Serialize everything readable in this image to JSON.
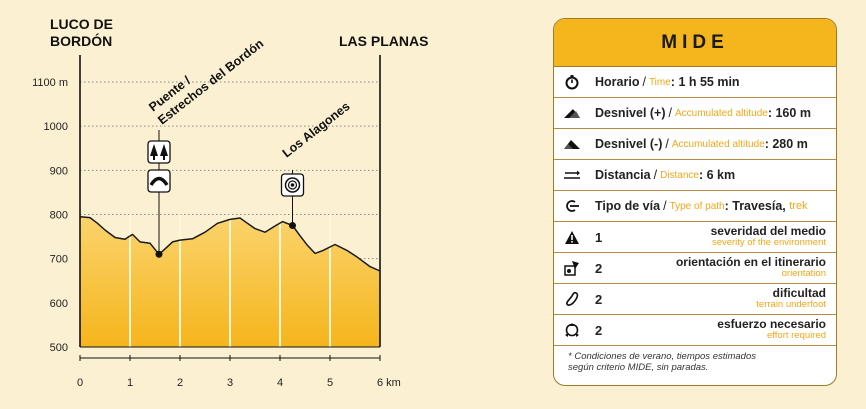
{
  "profile": {
    "start_label_line1": "LUCO DE",
    "start_label_line2": "BORDÓN",
    "end_label": "LAS PLANAS"
  },
  "chart_data": {
    "type": "area",
    "xlabel": "",
    "ylabel": "",
    "x_unit": "km",
    "y_unit": "m",
    "xlim": [
      0,
      6
    ],
    "ylim": [
      500,
      1100
    ],
    "x_ticks": [
      0,
      1,
      2,
      3,
      4,
      5,
      6
    ],
    "x_tick_labels": [
      "0",
      "1",
      "2",
      "3",
      "4",
      "5",
      "6 km"
    ],
    "y_ticks": [
      500,
      600,
      700,
      800,
      900,
      1000,
      1100
    ],
    "y_tick_labels": [
      "500",
      "600",
      "700",
      "800",
      "900",
      "1000",
      "1100 m"
    ],
    "grid": true,
    "fill_color": "#f5b51c",
    "series": [
      {
        "x": [
          0,
          0.2,
          0.35,
          0.5,
          0.7,
          0.9,
          1.05,
          1.2,
          1.4,
          1.58,
          1.7,
          1.85,
          2.0,
          2.25,
          2.5,
          2.75,
          3.0,
          3.2,
          3.35,
          3.5,
          3.7,
          3.9,
          4.05,
          4.25,
          4.4,
          4.55,
          4.7,
          4.85,
          5.1,
          5.35,
          5.55,
          5.8,
          6.0
        ],
        "y": [
          795,
          793,
          780,
          765,
          748,
          744,
          755,
          738,
          735,
          710,
          722,
          738,
          742,
          745,
          760,
          780,
          789,
          792,
          780,
          768,
          760,
          774,
          784,
          775,
          752,
          730,
          712,
          718,
          732,
          718,
          703,
          682,
          672
        ]
      }
    ],
    "annotations": [
      {
        "label_line1": "Puente /",
        "label_line2": "Estrechos del Bordón",
        "x": 1.58,
        "y": 710,
        "icons": [
          "forest-icon",
          "bridge-icon"
        ]
      },
      {
        "label_line1": "Los Alagones",
        "label_line2": "",
        "x": 4.25,
        "y": 775,
        "icons": [
          "viewpoint-icon"
        ]
      }
    ]
  },
  "mide": {
    "title": "MIDE",
    "horario": {
      "es": "Horario",
      "en": "Time",
      "value": "1 h 55 min"
    },
    "desnivel_pos": {
      "es": "Desnivel (+)",
      "en": "Accumulated altitude",
      "value": "160 m"
    },
    "desnivel_neg": {
      "es": "Desnivel (-)",
      "en": "Accumulated altitude",
      "value": "280 m"
    },
    "distancia": {
      "es": "Distancia",
      "en": "Distance",
      "value": "6 km"
    },
    "tipo_via": {
      "es": "Tipo de vía",
      "en": "Type of path",
      "value": "Travesía",
      "value_en": "trek"
    },
    "severidad": {
      "num": "1",
      "es": "severidad del medio",
      "en": "severity of the environment"
    },
    "orientacion": {
      "num": "2",
      "es": "orientación en el itinerario",
      "en": "orientation"
    },
    "dificultad": {
      "num": "2",
      "es": "dificultad",
      "en": "terrain underfoot"
    },
    "esfuerzo": {
      "num": "2",
      "es": "esfuerzo necesario",
      "en": "effort required"
    },
    "note_line1": "* Condiciones de verano, tiempos estimados",
    "note_line2": "según criterio MIDE, sin paradas."
  }
}
